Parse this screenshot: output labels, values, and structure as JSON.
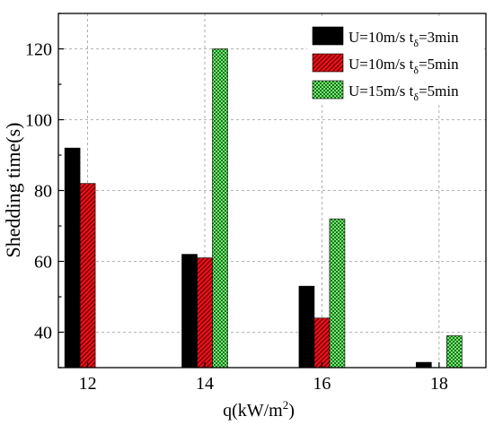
{
  "chart_data": {
    "type": "bar",
    "xlabel": "q(kW/m",
    "xlabel_sup": "2",
    "xlabel_end": ")",
    "ylabel": "Shedding time(s)",
    "ylim": [
      30,
      130
    ],
    "yticks": [
      40,
      60,
      80,
      100,
      120
    ],
    "xlim": [
      11.5,
      18.8
    ],
    "xticks": [
      12,
      14,
      16,
      18
    ],
    "grid": true,
    "legend_position": "top-right",
    "series": [
      {
        "name": "U=10m/s t_δ=3min",
        "legend_main": "U=10m/s t",
        "legend_sub": "δ",
        "legend_end": "=3min",
        "color": "#000000",
        "pattern": "solid",
        "x": [
          12,
          14,
          16,
          18
        ],
        "values": [
          92,
          62,
          53,
          31.5
        ]
      },
      {
        "name": "U=10m/s t_δ=5min",
        "legend_main": "U=10m/s t",
        "legend_sub": "δ",
        "legend_end": "=5min",
        "color": "#e8101a",
        "pattern": "hatch",
        "x": [
          12,
          14,
          16,
          18
        ],
        "values": [
          82,
          61,
          44,
          null
        ]
      },
      {
        "name": "U=15m/s t_δ=5min",
        "legend_main": "U=15m/s t",
        "legend_sub": "δ",
        "legend_end": "=5min",
        "color": "#22b022",
        "pattern": "checker",
        "x": [
          12,
          14,
          16,
          18
        ],
        "values": [
          null,
          120,
          72,
          39
        ]
      }
    ]
  }
}
